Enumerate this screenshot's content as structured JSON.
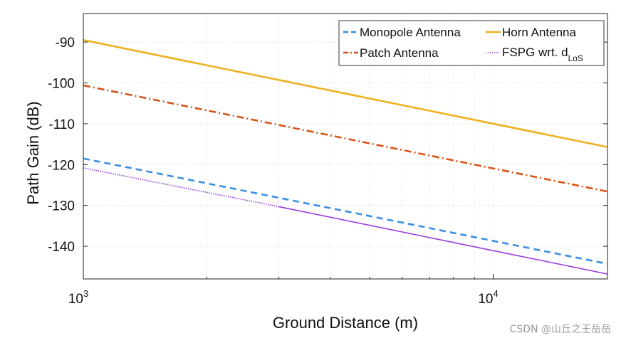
{
  "chart_data": {
    "type": "line",
    "xscale": "log",
    "xlim": [
      1000,
      19000
    ],
    "ylim": [
      -148,
      -83
    ],
    "ylabel": "Path Gain (dB)",
    "xlabel": "Ground Distance (m)",
    "yticks": [
      -90,
      -100,
      -110,
      -120,
      -130,
      -140
    ],
    "ytick_labels": [
      "-90",
      "-100",
      "-110",
      "-120",
      "-130",
      "-140"
    ],
    "xticks": [
      {
        "value": 1000,
        "base": "10",
        "exp": "3"
      },
      {
        "value": 10000,
        "base": "10",
        "exp": "4"
      }
    ],
    "grid": true,
    "legend_position": "top-right",
    "series": [
      {
        "name": "Monopole Antenna",
        "color": "#3a8ee6",
        "style": "dashed",
        "x": [
          1000,
          19000
        ],
        "y": [
          -118.5,
          -144.3
        ]
      },
      {
        "name": "Horn Antenna",
        "color": "#edb120",
        "style": "solid",
        "x": [
          1000,
          19000
        ],
        "y": [
          -89.5,
          -115.7
        ]
      },
      {
        "name": "Patch Antenna",
        "color": "#d95319",
        "style": "dashdot",
        "x": [
          1000,
          19000
        ],
        "y": [
          -100.6,
          -126.6
        ]
      },
      {
        "name": "FSPG wrt. d",
        "subscript": "LoS",
        "color": "#9b3fe0",
        "style": "dotted-then-solid",
        "x": [
          1000,
          3000,
          19000
        ],
        "y": [
          -120.8,
          -130.3,
          -146.8
        ]
      }
    ]
  },
  "watermark": "CSDN @山丘之王岳岳"
}
